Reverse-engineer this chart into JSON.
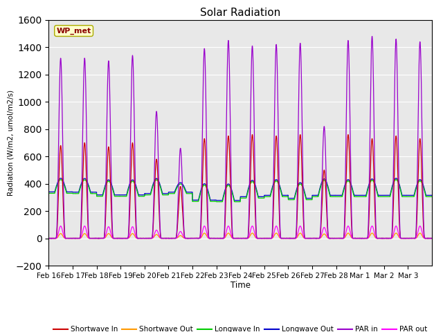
{
  "title": "Solar Radiation",
  "xlabel": "Time",
  "ylabel": "Radiation (W/m2, umol/m2/s)",
  "ylim": [
    -200,
    1600
  ],
  "yticks": [
    -200,
    0,
    200,
    400,
    600,
    800,
    1000,
    1200,
    1400,
    1600
  ],
  "date_labels": [
    "Feb 16",
    "Feb 17",
    "Feb 18",
    "Feb 19",
    "Feb 20",
    "Feb 21",
    "Feb 22",
    "Feb 23",
    "Feb 24",
    "Feb 25",
    "Feb 26",
    "Feb 27",
    "Feb 28",
    "Mar 1",
    "Mar 2",
    "Mar 3"
  ],
  "station_label": "WP_met",
  "colors": {
    "shortwave_in": "#cc0000",
    "shortwave_out": "#ff9900",
    "longwave_in": "#00cc00",
    "longwave_out": "#0000cc",
    "par_in": "#9900cc",
    "par_out": "#ff00ff"
  },
  "legend": [
    "Shortwave In",
    "Shortwave Out",
    "Longwave In",
    "Longwave Out",
    "PAR in",
    "PAR out"
  ],
  "background_color": "#e8e8e8",
  "n_days": 16,
  "pts_per_day": 288,
  "shortwave_in_peaks": [
    680,
    700,
    670,
    700,
    580,
    380,
    730,
    750,
    760,
    750,
    760,
    500,
    760,
    730,
    750,
    730
  ],
  "shortwave_out_peaks": [
    35,
    35,
    35,
    35,
    28,
    20,
    38,
    38,
    38,
    38,
    38,
    32,
    38,
    38,
    38,
    38
  ],
  "longwave_in_night": [
    330,
    328,
    308,
    308,
    318,
    328,
    270,
    268,
    295,
    305,
    283,
    305,
    305,
    305,
    305,
    305
  ],
  "longwave_in_day_add": [
    100,
    100,
    110,
    110,
    110,
    70,
    120,
    120,
    120,
    115,
    115,
    120,
    115,
    120,
    125,
    115
  ],
  "longwave_out_night": [
    340,
    338,
    318,
    318,
    328,
    338,
    280,
    278,
    305,
    315,
    293,
    315,
    315,
    315,
    315,
    315
  ],
  "longwave_out_day_add": [
    100,
    100,
    110,
    110,
    110,
    70,
    120,
    120,
    120,
    115,
    115,
    120,
    115,
    120,
    125,
    115
  ],
  "par_in_peaks": [
    1320,
    1320,
    1300,
    1340,
    930,
    660,
    1390,
    1450,
    1410,
    1420,
    1430,
    820,
    1450,
    1480,
    1460,
    1440
  ],
  "par_out_peaks": [
    90,
    90,
    85,
    85,
    60,
    50,
    90,
    90,
    90,
    90,
    90,
    80,
    90,
    90,
    90,
    90
  ]
}
